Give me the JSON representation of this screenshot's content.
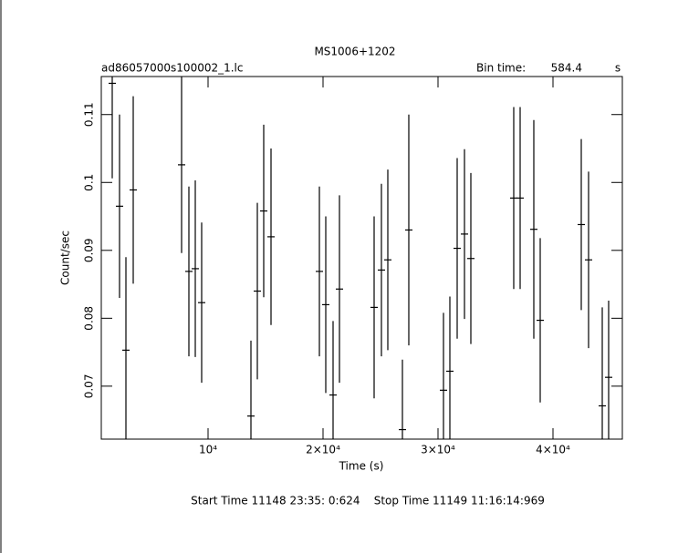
{
  "chart_data": {
    "type": "errorbar",
    "title": "MS1006+1202",
    "subtitle": "ad86057000s100002_1.lc",
    "bin_time_label": "Bin time:",
    "bin_time": 584.4,
    "bin_time_unit": "s",
    "x_label": "Time (s)",
    "y_label": "Count/sec",
    "footer": "Start Time 11148 23:35: 0:624    Stop Time 11149 11:16:14:969",
    "color": "#000000",
    "xlim": [
      714,
      46032
    ],
    "ylim": [
      0.0622,
      0.1156
    ],
    "xticks": [
      {
        "value": 10000,
        "label": "10⁴"
      },
      {
        "value": 20000,
        "label": "2×10⁴"
      },
      {
        "value": 30000,
        "label": "3×10⁴"
      },
      {
        "value": 40000,
        "label": "4×10⁴"
      }
    ],
    "yticks": [
      0.07,
      0.08,
      0.09,
      0.1,
      0.11
    ],
    "x": [
      1666,
      2300,
      2857,
      3492,
      7698,
      8333,
      8889,
      9444,
      13730,
      14286,
      14841,
      15476,
      19683,
      20238,
      20873,
      21429,
      24444,
      25079,
      25635,
      26905,
      27460,
      30476,
      31032,
      31667,
      32302,
      32857,
      36587,
      37143,
      38333,
      38889,
      42460,
      43095,
      44286,
      44841
    ],
    "values": [
      0.1146,
      0.0965,
      0.0753,
      0.0989,
      0.1026,
      0.0869,
      0.0873,
      0.0823,
      0.0656,
      0.084,
      0.0958,
      0.092,
      0.0869,
      0.082,
      0.0687,
      0.0843,
      0.0816,
      0.0871,
      0.0886,
      0.0636,
      0.093,
      0.0694,
      0.0722,
      0.0903,
      0.0924,
      0.0888,
      0.0977,
      0.0977,
      0.0931,
      0.0797,
      0.0938,
      0.0886,
      0.0671,
      0.0713
    ],
    "errors": [
      0.014,
      0.0135,
      0.0137,
      0.0138,
      0.013,
      0.0125,
      0.013,
      0.0118,
      0.0111,
      0.013,
      0.0127,
      0.013,
      0.0125,
      0.013,
      0.0109,
      0.0138,
      0.0134,
      0.0127,
      0.0133,
      0.0103,
      0.017,
      0.0114,
      0.011,
      0.0133,
      0.0125,
      0.0126,
      0.0134,
      0.0134,
      0.0161,
      0.0121,
      0.0126,
      0.013,
      0.0145,
      0.0113
    ]
  }
}
